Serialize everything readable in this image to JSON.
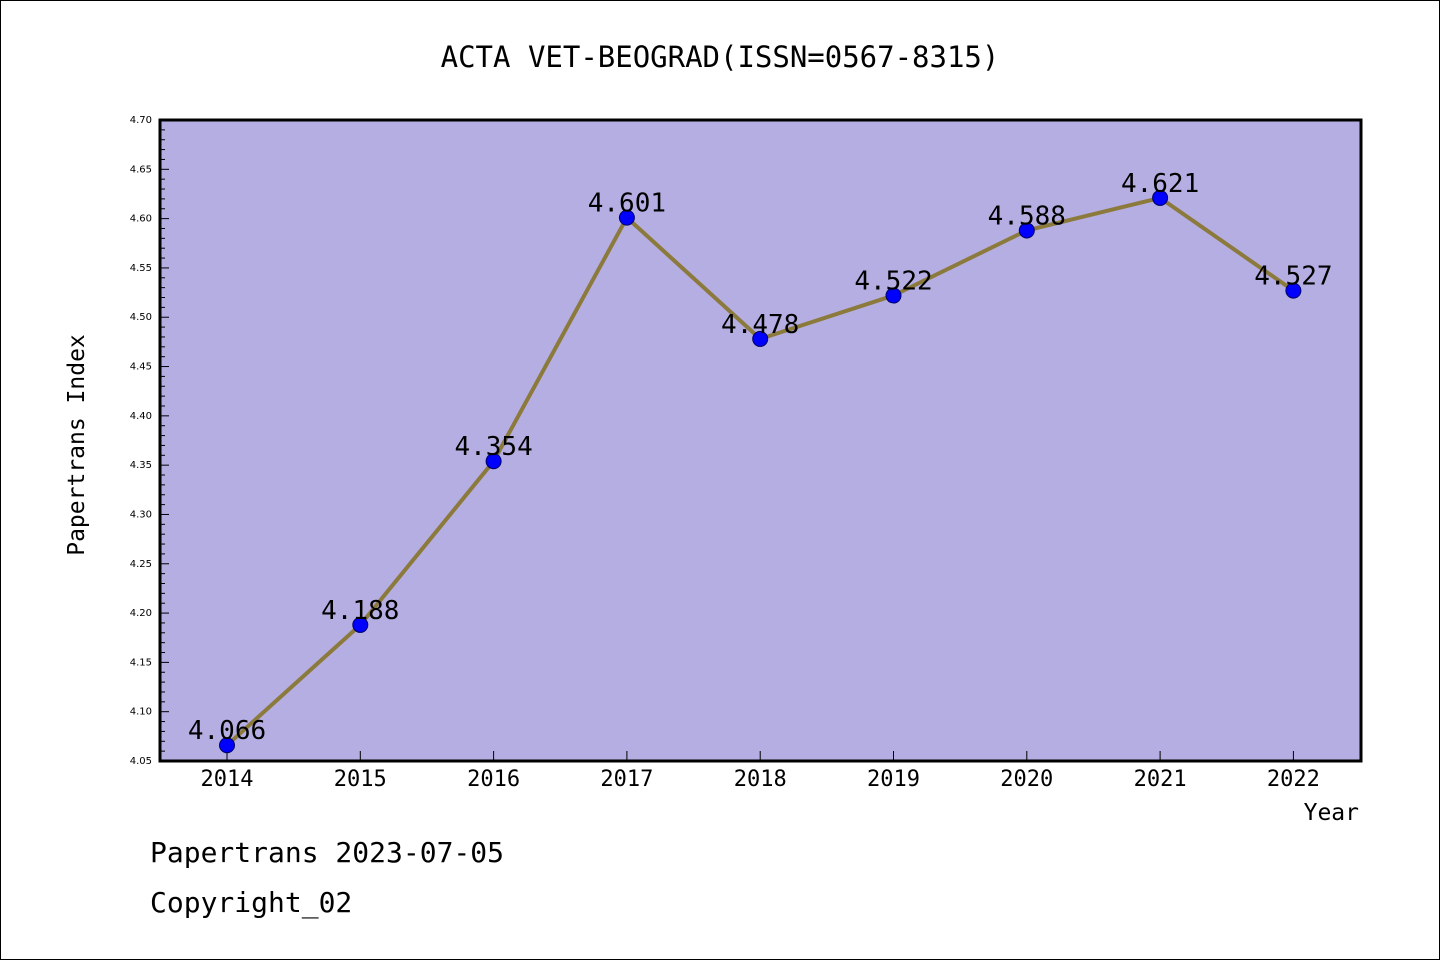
{
  "chart_data": {
    "type": "line",
    "title": "ACTA VET-BEOGRAD(ISSN=0567-8315)",
    "xlabel": "Year",
    "ylabel": "Papertrans Index",
    "categories": [
      "2014",
      "2015",
      "2016",
      "2017",
      "2018",
      "2019",
      "2020",
      "2021",
      "2022"
    ],
    "values": [
      4.066,
      4.188,
      4.354,
      4.601,
      4.478,
      4.522,
      4.588,
      4.621,
      4.527
    ],
    "data_labels": [
      "4.066",
      "4.188",
      "4.354",
      "4.601",
      "4.478",
      "4.522",
      "4.588",
      "4.621",
      "4.527"
    ],
    "ylim": [
      4.05,
      4.7
    ],
    "y_ticks": [
      "4.05",
      "4.10",
      "4.15",
      "4.20",
      "4.25",
      "4.30",
      "4.35",
      "4.40",
      "4.45",
      "4.50",
      "4.55",
      "4.60",
      "4.65",
      "4.70"
    ],
    "grid": false,
    "legend": "none",
    "colors": {
      "plot_background": "#b5aee2",
      "line": "#8b7a3c",
      "marker": "#0000ff",
      "marker_edge": "#000066"
    }
  },
  "footer": {
    "source": "Papertrans 2023-07-05",
    "copyright": "Copyright_02"
  }
}
